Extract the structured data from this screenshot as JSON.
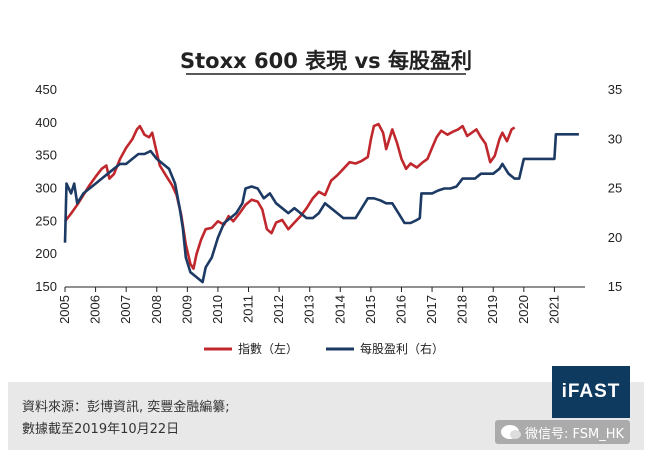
{
  "chart_data": {
    "type": "line",
    "title": "Stoxx 600 表現 vs 每股盈利",
    "x_ticks": [
      "2005",
      "2006",
      "2007",
      "2008",
      "2009",
      "2010",
      "2011",
      "2012",
      "2013",
      "2014",
      "2015",
      "2016",
      "2017",
      "2018",
      "2019",
      "2020",
      "2021"
    ],
    "y_left": {
      "ticks": [
        150,
        200,
        250,
        300,
        350,
        400,
        450
      ],
      "range": [
        150,
        450
      ]
    },
    "y_right": {
      "ticks": [
        15,
        20,
        25,
        30,
        35
      ],
      "range": [
        15,
        35
      ]
    },
    "legend_position": "bottom",
    "series": [
      {
        "name": "指數（左）",
        "axis": "left",
        "color": "#c0282d",
        "points": [
          [
            2005.0,
            250
          ],
          [
            2005.2,
            262
          ],
          [
            2005.4,
            275
          ],
          [
            2005.6,
            290
          ],
          [
            2005.8,
            305
          ],
          [
            2006.0,
            318
          ],
          [
            2006.2,
            330
          ],
          [
            2006.35,
            335
          ],
          [
            2006.45,
            315
          ],
          [
            2006.6,
            322
          ],
          [
            2006.8,
            345
          ],
          [
            2007.0,
            362
          ],
          [
            2007.2,
            375
          ],
          [
            2007.35,
            390
          ],
          [
            2007.45,
            395
          ],
          [
            2007.6,
            382
          ],
          [
            2007.75,
            378
          ],
          [
            2007.85,
            385
          ],
          [
            2007.95,
            365
          ],
          [
            2008.1,
            335
          ],
          [
            2008.3,
            320
          ],
          [
            2008.5,
            305
          ],
          [
            2008.65,
            290
          ],
          [
            2008.8,
            260
          ],
          [
            2008.95,
            215
          ],
          [
            2009.1,
            185
          ],
          [
            2009.2,
            178
          ],
          [
            2009.3,
            200
          ],
          [
            2009.45,
            222
          ],
          [
            2009.6,
            238
          ],
          [
            2009.8,
            240
          ],
          [
            2010.0,
            250
          ],
          [
            2010.2,
            245
          ],
          [
            2010.35,
            258
          ],
          [
            2010.5,
            250
          ],
          [
            2010.7,
            262
          ],
          [
            2010.9,
            275
          ],
          [
            2011.1,
            283
          ],
          [
            2011.3,
            280
          ],
          [
            2011.45,
            268
          ],
          [
            2011.6,
            238
          ],
          [
            2011.75,
            232
          ],
          [
            2011.9,
            248
          ],
          [
            2012.1,
            252
          ],
          [
            2012.3,
            238
          ],
          [
            2012.5,
            248
          ],
          [
            2012.7,
            258
          ],
          [
            2012.9,
            270
          ],
          [
            2013.1,
            285
          ],
          [
            2013.3,
            295
          ],
          [
            2013.5,
            290
          ],
          [
            2013.7,
            312
          ],
          [
            2013.9,
            320
          ],
          [
            2014.1,
            330
          ],
          [
            2014.3,
            340
          ],
          [
            2014.5,
            338
          ],
          [
            2014.7,
            342
          ],
          [
            2014.9,
            348
          ],
          [
            2015.0,
            375
          ],
          [
            2015.1,
            395
          ],
          [
            2015.25,
            398
          ],
          [
            2015.4,
            385
          ],
          [
            2015.5,
            360
          ],
          [
            2015.7,
            390
          ],
          [
            2015.85,
            370
          ],
          [
            2016.0,
            345
          ],
          [
            2016.15,
            330
          ],
          [
            2016.3,
            338
          ],
          [
            2016.5,
            332
          ],
          [
            2016.7,
            340
          ],
          [
            2016.85,
            345
          ],
          [
            2017.0,
            362
          ],
          [
            2017.15,
            378
          ],
          [
            2017.3,
            388
          ],
          [
            2017.5,
            382
          ],
          [
            2017.7,
            387
          ],
          [
            2017.85,
            390
          ],
          [
            2018.0,
            395
          ],
          [
            2018.15,
            380
          ],
          [
            2018.3,
            385
          ],
          [
            2018.45,
            390
          ],
          [
            2018.6,
            378
          ],
          [
            2018.75,
            368
          ],
          [
            2018.9,
            340
          ],
          [
            2019.05,
            350
          ],
          [
            2019.2,
            375
          ],
          [
            2019.3,
            385
          ],
          [
            2019.45,
            372
          ],
          [
            2019.6,
            390
          ],
          [
            2019.7,
            393
          ]
        ]
      },
      {
        "name": "每股盈利（右）",
        "axis": "right",
        "color": "#1c3a63",
        "points": [
          [
            2005.0,
            19.5
          ],
          [
            2005.05,
            25.5
          ],
          [
            2005.2,
            24.5
          ],
          [
            2005.3,
            25.5
          ],
          [
            2005.4,
            23.5
          ],
          [
            2005.6,
            24.5
          ],
          [
            2005.8,
            25.0
          ],
          [
            2006.0,
            25.5
          ],
          [
            2006.2,
            26.0
          ],
          [
            2006.4,
            26.5
          ],
          [
            2006.6,
            27.0
          ],
          [
            2006.8,
            27.5
          ],
          [
            2007.0,
            27.5
          ],
          [
            2007.2,
            28.0
          ],
          [
            2007.4,
            28.5
          ],
          [
            2007.6,
            28.5
          ],
          [
            2007.8,
            28.8
          ],
          [
            2008.0,
            28.0
          ],
          [
            2008.2,
            27.5
          ],
          [
            2008.4,
            27.0
          ],
          [
            2008.6,
            25.5
          ],
          [
            2008.75,
            23.0
          ],
          [
            2008.85,
            21.0
          ],
          [
            2008.95,
            18.0
          ],
          [
            2009.1,
            16.5
          ],
          [
            2009.3,
            16.0
          ],
          [
            2009.5,
            15.5
          ],
          [
            2009.6,
            17.0
          ],
          [
            2009.8,
            18.0
          ],
          [
            2010.0,
            20.0
          ],
          [
            2010.2,
            21.5
          ],
          [
            2010.4,
            22.0
          ],
          [
            2010.6,
            22.5
          ],
          [
            2010.8,
            23.5
          ],
          [
            2010.9,
            25.0
          ],
          [
            2011.1,
            25.2
          ],
          [
            2011.3,
            25.0
          ],
          [
            2011.5,
            24.0
          ],
          [
            2011.7,
            24.5
          ],
          [
            2011.9,
            23.5
          ],
          [
            2012.1,
            23.0
          ],
          [
            2012.3,
            22.5
          ],
          [
            2012.5,
            23.0
          ],
          [
            2012.7,
            22.5
          ],
          [
            2012.9,
            22.0
          ],
          [
            2013.1,
            22.0
          ],
          [
            2013.3,
            22.5
          ],
          [
            2013.5,
            23.5
          ],
          [
            2013.7,
            23.0
          ],
          [
            2013.9,
            22.5
          ],
          [
            2014.1,
            22.0
          ],
          [
            2014.3,
            22.0
          ],
          [
            2014.5,
            22.0
          ],
          [
            2014.7,
            23.0
          ],
          [
            2014.9,
            24.0
          ],
          [
            2015.1,
            24.0
          ],
          [
            2015.3,
            23.8
          ],
          [
            2015.5,
            23.5
          ],
          [
            2015.7,
            23.5
          ],
          [
            2015.9,
            22.5
          ],
          [
            2016.1,
            21.5
          ],
          [
            2016.3,
            21.5
          ],
          [
            2016.5,
            21.8
          ],
          [
            2016.6,
            22.0
          ],
          [
            2016.65,
            24.5
          ],
          [
            2016.85,
            24.5
          ],
          [
            2017.0,
            24.5
          ],
          [
            2017.2,
            24.8
          ],
          [
            2017.4,
            25.0
          ],
          [
            2017.6,
            25.0
          ],
          [
            2017.8,
            25.2
          ],
          [
            2018.0,
            26.0
          ],
          [
            2018.2,
            26.0
          ],
          [
            2018.4,
            26.0
          ],
          [
            2018.6,
            26.5
          ],
          [
            2018.8,
            26.5
          ],
          [
            2019.0,
            26.5
          ],
          [
            2019.2,
            27.0
          ],
          [
            2019.3,
            27.5
          ],
          [
            2019.5,
            26.5
          ],
          [
            2019.7,
            26.0
          ],
          [
            2019.85,
            26.0
          ],
          [
            2020.0,
            28.0
          ],
          [
            2020.3,
            28.0
          ],
          [
            2020.6,
            28.0
          ],
          [
            2020.8,
            28.0
          ],
          [
            2021.0,
            28.0
          ],
          [
            2021.05,
            30.5
          ],
          [
            2021.4,
            30.5
          ],
          [
            2021.8,
            30.5
          ]
        ]
      }
    ]
  },
  "footer": {
    "source_line": "資料來源：彭博資訊, 奕豐金融編纂;",
    "date_line": "數據截至2019年10月22日",
    "logo": "iFAST",
    "watermark": "微信号: FSM_HK"
  }
}
